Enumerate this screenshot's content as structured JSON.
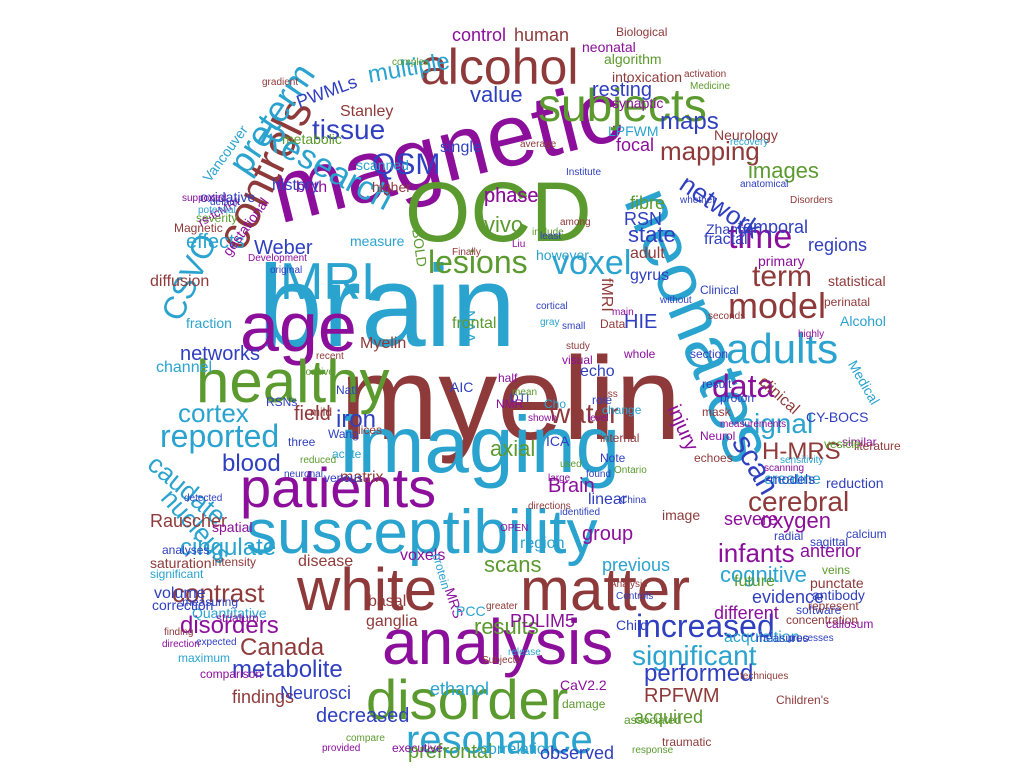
{
  "palette": {
    "purple": "#8b0f9b",
    "maroon": "#8f3a3a",
    "blue": "#2f3fbf",
    "sky": "#2aa3cf",
    "green": "#5b9a2e"
  },
  "words": [
    {
      "text": "brain",
      "color": "sky"
    },
    {
      "text": "myelin",
      "color": "maroon"
    },
    {
      "text": "magnetic",
      "color": "purple"
    },
    {
      "text": "OCD",
      "color": "green"
    },
    {
      "text": "imaging",
      "color": "sky"
    },
    {
      "text": "susceptibility",
      "color": "sky"
    },
    {
      "text": "white",
      "color": "maroon"
    },
    {
      "text": "matter",
      "color": "maroon"
    },
    {
      "text": "neonates",
      "color": "sky"
    },
    {
      "text": "analysis",
      "color": "purple"
    },
    {
      "text": "disorder",
      "color": "green"
    },
    {
      "text": "patients",
      "color": "purple"
    },
    {
      "text": "age",
      "color": "purple"
    },
    {
      "text": "healthy",
      "color": "green"
    },
    {
      "text": "alcohol",
      "color": "maroon"
    },
    {
      "text": "subjects",
      "color": "green"
    },
    {
      "text": "MRI",
      "color": "sky"
    },
    {
      "text": "controls",
      "color": "maroon"
    },
    {
      "text": "Research",
      "color": "sky"
    },
    {
      "text": "preterm",
      "color": "sky"
    },
    {
      "text": "adults",
      "color": "sky"
    },
    {
      "text": "model",
      "color": "maroon"
    },
    {
      "text": "data",
      "color": "purple"
    },
    {
      "text": "time",
      "color": "purple"
    },
    {
      "text": "lesions",
      "color": "green"
    },
    {
      "text": "voxel",
      "color": "sky"
    },
    {
      "text": "resonance",
      "color": "sky"
    },
    {
      "text": "tissue",
      "color": "blue"
    },
    {
      "text": "QSM",
      "color": "blue"
    },
    {
      "text": "reported",
      "color": "sky"
    },
    {
      "text": "cortex",
      "color": "sky"
    },
    {
      "text": "water",
      "color": "maroon"
    },
    {
      "text": "signal",
      "color": "sky"
    },
    {
      "text": "scan",
      "color": "blue"
    },
    {
      "text": "term",
      "color": "maroon"
    },
    {
      "text": "network",
      "color": "blue"
    },
    {
      "text": "mapping",
      "color": "maroon"
    },
    {
      "text": "caudate",
      "color": "sky"
    },
    {
      "text": "nucleus",
      "color": "sky"
    },
    {
      "text": "blood",
      "color": "blue"
    },
    {
      "text": "iron",
      "color": "blue"
    },
    {
      "text": "infants",
      "color": "purple"
    },
    {
      "text": "cerebral",
      "color": "maroon"
    },
    {
      "text": "H-MRS",
      "color": "maroon"
    },
    {
      "text": "CSVO",
      "color": "sky"
    },
    {
      "text": "cingulate",
      "color": "sky"
    },
    {
      "text": "contrast",
      "color": "maroon"
    },
    {
      "text": "disorders",
      "color": "purple"
    },
    {
      "text": "increased",
      "color": "blue"
    },
    {
      "text": "significant",
      "color": "sky"
    },
    {
      "text": "performed",
      "color": "blue"
    },
    {
      "text": "metabolite",
      "color": "blue"
    },
    {
      "text": "Canada",
      "color": "maroon"
    },
    {
      "text": "results",
      "color": "green"
    },
    {
      "text": "scans",
      "color": "green"
    },
    {
      "text": "Brain",
      "color": "purple"
    },
    {
      "text": "oxygen",
      "color": "purple"
    },
    {
      "text": "cognitive",
      "color": "sky"
    },
    {
      "text": "maps",
      "color": "blue"
    },
    {
      "text": "phase",
      "color": "purple"
    },
    {
      "text": "vivo",
      "color": "green"
    },
    {
      "text": "state",
      "color": "blue"
    },
    {
      "text": "images",
      "color": "green"
    },
    {
      "text": "Weber",
      "color": "blue"
    },
    {
      "text": "effects",
      "color": "sky"
    },
    {
      "text": "networks",
      "color": "blue"
    },
    {
      "text": "field",
      "color": "maroon"
    },
    {
      "text": "multiple",
      "color": "sky"
    },
    {
      "text": "value",
      "color": "blue"
    },
    {
      "text": "control",
      "color": "purple"
    },
    {
      "text": "human",
      "color": "maroon"
    },
    {
      "text": "resting",
      "color": "blue"
    },
    {
      "text": "PWMLs",
      "color": "blue"
    },
    {
      "text": "RSN",
      "color": "blue"
    },
    {
      "text": "fibre",
      "color": "green"
    },
    {
      "text": "HIE",
      "color": "blue"
    },
    {
      "text": "injury",
      "color": "purple"
    },
    {
      "text": "axial",
      "color": "green"
    },
    {
      "text": "group",
      "color": "purple"
    },
    {
      "text": "PDLIM5",
      "color": "purple"
    },
    {
      "text": "RPFWM",
      "color": "maroon"
    },
    {
      "text": "acquired",
      "color": "green"
    },
    {
      "text": "ethanol",
      "color": "sky"
    },
    {
      "text": "decreased",
      "color": "blue"
    },
    {
      "text": "prefrontal",
      "color": "green"
    },
    {
      "text": "correlation",
      "color": "sky"
    },
    {
      "text": "observed",
      "color": "blue"
    },
    {
      "text": "findings",
      "color": "maroon"
    },
    {
      "text": "Neurosci",
      "color": "blue"
    },
    {
      "text": "disease",
      "color": "maroon"
    },
    {
      "text": "voxels",
      "color": "purple"
    },
    {
      "text": "regions",
      "color": "blue"
    },
    {
      "text": "temporal",
      "color": "blue"
    },
    {
      "text": "anterior",
      "color": "purple"
    },
    {
      "text": "evidence",
      "color": "blue"
    },
    {
      "text": "severe",
      "color": "purple"
    },
    {
      "text": "creatine",
      "color": "sky"
    },
    {
      "text": "future",
      "color": "green"
    },
    {
      "text": "different",
      "color": "purple"
    },
    {
      "text": "previous",
      "color": "sky"
    },
    {
      "text": "Child",
      "color": "blue"
    },
    {
      "text": "acquisition",
      "color": "sky"
    },
    {
      "text": "Rauscher",
      "color": "maroon"
    },
    {
      "text": "volume",
      "color": "blue"
    },
    {
      "text": "channel",
      "color": "sky"
    },
    {
      "text": "matrix",
      "color": "maroon"
    },
    {
      "text": "birth",
      "color": "purple"
    },
    {
      "text": "history",
      "color": "blue"
    },
    {
      "text": "metabolic",
      "color": "green"
    },
    {
      "text": "Stanley",
      "color": "maroon"
    },
    {
      "text": "focal",
      "color": "purple"
    },
    {
      "text": "single",
      "color": "blue"
    },
    {
      "text": "phase",
      "color": "purple"
    },
    {
      "text": "adult",
      "color": "maroon"
    },
    {
      "text": "gyrus",
      "color": "blue"
    },
    {
      "text": "fractal",
      "color": "blue"
    },
    {
      "text": "Neurology",
      "color": "maroon"
    },
    {
      "text": "clinical",
      "color": "maroon"
    },
    {
      "text": "Alcohol",
      "color": "sky"
    },
    {
      "text": "diffusion",
      "color": "maroon"
    },
    {
      "text": "fraction",
      "color": "sky"
    },
    {
      "text": "ganglia",
      "color": "maroon"
    },
    {
      "text": "basal",
      "color": "maroon"
    },
    {
      "text": "echo",
      "color": "blue"
    },
    {
      "text": "NAA",
      "color": "sky"
    },
    {
      "text": "fMRI",
      "color": "maroon"
    },
    {
      "text": "image",
      "color": "maroon"
    },
    {
      "text": "linear",
      "color": "blue"
    },
    {
      "text": "region",
      "color": "sky"
    },
    {
      "text": "frontal",
      "color": "green"
    },
    {
      "text": "Myelin",
      "color": "maroon"
    },
    {
      "text": "scanned",
      "color": "sky"
    },
    {
      "text": "higher",
      "color": "maroon"
    },
    {
      "text": "neonatal",
      "color": "purple"
    },
    {
      "text": "CY-BOCS",
      "color": "blue"
    },
    {
      "text": "reduction",
      "color": "blue"
    },
    {
      "text": "concentration",
      "color": "maroon"
    },
    {
      "text": "Medical",
      "color": "sky"
    },
    {
      "text": "measure",
      "color": "sky"
    },
    {
      "text": "measuring",
      "color": "blue"
    },
    {
      "text": "Quantitative",
      "color": "sky"
    },
    {
      "text": "comparison",
      "color": "purple"
    },
    {
      "text": "associated",
      "color": "green"
    },
    {
      "text": "spatial",
      "color": "purple"
    },
    {
      "text": "saturation",
      "color": "maroon"
    },
    {
      "text": "analyses",
      "color": "blue"
    },
    {
      "text": "significant",
      "color": "sky"
    },
    {
      "text": "correction",
      "color": "blue"
    },
    {
      "text": "MRS",
      "color": "purple"
    },
    {
      "text": "CaV2.2",
      "color": "purple"
    },
    {
      "text": "PCC",
      "color": "sky"
    },
    {
      "text": "ICA",
      "color": "blue"
    },
    {
      "text": "AIC",
      "color": "blue"
    },
    {
      "text": "LPFWM",
      "color": "sky"
    },
    {
      "text": "veins",
      "color": "green"
    },
    {
      "text": "radial",
      "color": "blue"
    },
    {
      "text": "sagittal",
      "color": "blue"
    },
    {
      "text": "antibody",
      "color": "blue"
    },
    {
      "text": "punctate",
      "color": "maroon"
    },
    {
      "text": "calcium",
      "color": "blue"
    },
    {
      "text": "models",
      "color": "blue"
    },
    {
      "text": "primary",
      "color": "purple"
    },
    {
      "text": "statistical",
      "color": "maroon"
    },
    {
      "text": "intoxication",
      "color": "maroon"
    },
    {
      "text": "algorithm",
      "color": "green"
    },
    {
      "text": "synaptic",
      "color": "purple"
    },
    {
      "text": "Biological",
      "color": "maroon"
    },
    {
      "text": "oxidative",
      "color": "blue"
    },
    {
      "text": "Vancouver",
      "color": "sky"
    },
    {
      "text": "gestational",
      "color": "purple"
    },
    {
      "text": "severity",
      "color": "green"
    },
    {
      "text": "Magnetic",
      "color": "maroon"
    },
    {
      "text": "BOLD",
      "color": "green"
    },
    {
      "text": "Zhang",
      "color": "blue"
    },
    {
      "text": "Clinical",
      "color": "blue"
    },
    {
      "text": "DTI",
      "color": "blue"
    },
    {
      "text": "NMR",
      "color": "purple"
    },
    {
      "text": "Cho",
      "color": "sky"
    },
    {
      "text": "mild",
      "color": "maroon"
    },
    {
      "text": "three",
      "color": "blue"
    },
    {
      "text": "Wang",
      "color": "blue"
    },
    {
      "text": "slices",
      "color": "maroon"
    },
    {
      "text": "RSNs",
      "color": "blue"
    },
    {
      "text": "acute",
      "color": "sky"
    },
    {
      "text": "venous",
      "color": "blue"
    },
    {
      "text": "Natl",
      "color": "blue"
    },
    {
      "text": "half",
      "color": "purple"
    },
    {
      "text": "damage",
      "color": "green"
    },
    {
      "text": "executive",
      "color": "purple"
    },
    {
      "text": "traumatic",
      "color": "maroon"
    },
    {
      "text": "perinatal",
      "color": "maroon"
    },
    {
      "text": "proton",
      "color": "blue"
    },
    {
      "text": "similar",
      "color": "purple"
    },
    {
      "text": "mask",
      "color": "maroon"
    },
    {
      "text": "result",
      "color": "blue"
    },
    {
      "text": "section",
      "color": "blue"
    },
    {
      "text": "Children's",
      "color": "maroon"
    },
    {
      "text": "measures",
      "color": "blue"
    },
    {
      "text": "callosum",
      "color": "purple"
    },
    {
      "text": "software",
      "color": "blue"
    },
    {
      "text": "represent",
      "color": "maroon"
    },
    {
      "text": "literature",
      "color": "maroon"
    },
    {
      "text": "Neurol",
      "color": "purple"
    },
    {
      "text": "vesicle",
      "color": "green"
    },
    {
      "text": "echoes",
      "color": "maroon"
    },
    {
      "text": "whole",
      "color": "purple"
    },
    {
      "text": "Note",
      "color": "blue"
    },
    {
      "text": "internal",
      "color": "maroon"
    },
    {
      "text": "OPEN",
      "color": "purple"
    },
    {
      "text": "Subjects",
      "color": "maroon"
    },
    {
      "text": "protein",
      "color": "sky"
    },
    {
      "text": "release",
      "color": "sky"
    },
    {
      "text": "greater",
      "color": "maroon"
    },
    {
      "text": "however",
      "color": "sky"
    },
    {
      "text": "include",
      "color": "green"
    },
    {
      "text": "intensity",
      "color": "maroon"
    },
    {
      "text": "striatum",
      "color": "purple"
    },
    {
      "text": "expected",
      "color": "blue"
    },
    {
      "text": "maximum",
      "color": "sky"
    },
    {
      "text": "rs-fcMRI",
      "color": "purple"
    },
    {
      "text": "Development",
      "color": "purple"
    },
    {
      "text": "activation",
      "color": "maroon"
    },
    {
      "text": "Medicine",
      "color": "green"
    },
    {
      "text": "complex",
      "color": "green"
    },
    {
      "text": "gradient",
      "color": "maroon"
    },
    {
      "text": "default",
      "color": "blue"
    },
    {
      "text": "potential",
      "color": "sky"
    },
    {
      "text": "supported",
      "color": "purple"
    },
    {
      "text": "anatomical",
      "color": "blue"
    },
    {
      "text": "recovery",
      "color": "sky"
    },
    {
      "text": "recent",
      "color": "maroon"
    },
    {
      "text": "positive",
      "color": "green"
    },
    {
      "text": "visual",
      "color": "purple"
    },
    {
      "text": "original",
      "color": "blue"
    },
    {
      "text": "Institute",
      "color": "blue"
    },
    {
      "text": "among",
      "color": "maroon"
    },
    {
      "text": "least",
      "color": "blue"
    },
    {
      "text": "average",
      "color": "maroon"
    },
    {
      "text": "main",
      "color": "purple"
    },
    {
      "text": "Data",
      "color": "maroon"
    },
    {
      "text": "role",
      "color": "blue"
    },
    {
      "text": "change",
      "color": "sky"
    },
    {
      "text": "loss",
      "color": "maroon"
    },
    {
      "text": "Ontario",
      "color": "green"
    },
    {
      "text": "China",
      "color": "blue"
    },
    {
      "text": "Analysis",
      "color": "maroon"
    },
    {
      "text": "Controls",
      "color": "blue"
    },
    {
      "text": "large",
      "color": "purple"
    },
    {
      "text": "identified",
      "color": "blue"
    },
    {
      "text": "directions",
      "color": "maroon"
    },
    {
      "text": "neuronal",
      "color": "blue"
    },
    {
      "text": "detected",
      "color": "blue"
    },
    {
      "text": "finding",
      "color": "maroon"
    },
    {
      "text": "direction",
      "color": "purple"
    },
    {
      "text": "provided",
      "color": "purple"
    },
    {
      "text": "compare",
      "color": "green"
    },
    {
      "text": "response",
      "color": "green"
    },
    {
      "text": "processes",
      "color": "blue"
    },
    {
      "text": "techniques",
      "color": "maroon"
    },
    {
      "text": "scanning",
      "color": "purple"
    },
    {
      "text": "sensitivity",
      "color": "sky"
    },
    {
      "text": "highly",
      "color": "purple"
    },
    {
      "text": "seconds",
      "color": "maroon"
    },
    {
      "text": "without",
      "color": "blue"
    },
    {
      "text": "whether",
      "color": "blue"
    },
    {
      "text": "Disorders",
      "color": "maroon"
    },
    {
      "text": "Liu",
      "color": "purple"
    },
    {
      "text": "Finally",
      "color": "maroon"
    },
    {
      "text": "measurements",
      "color": "purple"
    },
    {
      "text": "reduced",
      "color": "green"
    },
    {
      "text": "cortical",
      "color": "blue"
    },
    {
      "text": "gray",
      "color": "sky"
    },
    {
      "text": "mean",
      "color": "green"
    },
    {
      "text": "shown",
      "color": "purple"
    },
    {
      "text": "small",
      "color": "blue"
    },
    {
      "text": "study",
      "color": "maroon"
    },
    {
      "text": "level",
      "color": "purple"
    },
    {
      "text": "found",
      "color": "blue"
    },
    {
      "text": "used",
      "color": "green"
    }
  ]
}
